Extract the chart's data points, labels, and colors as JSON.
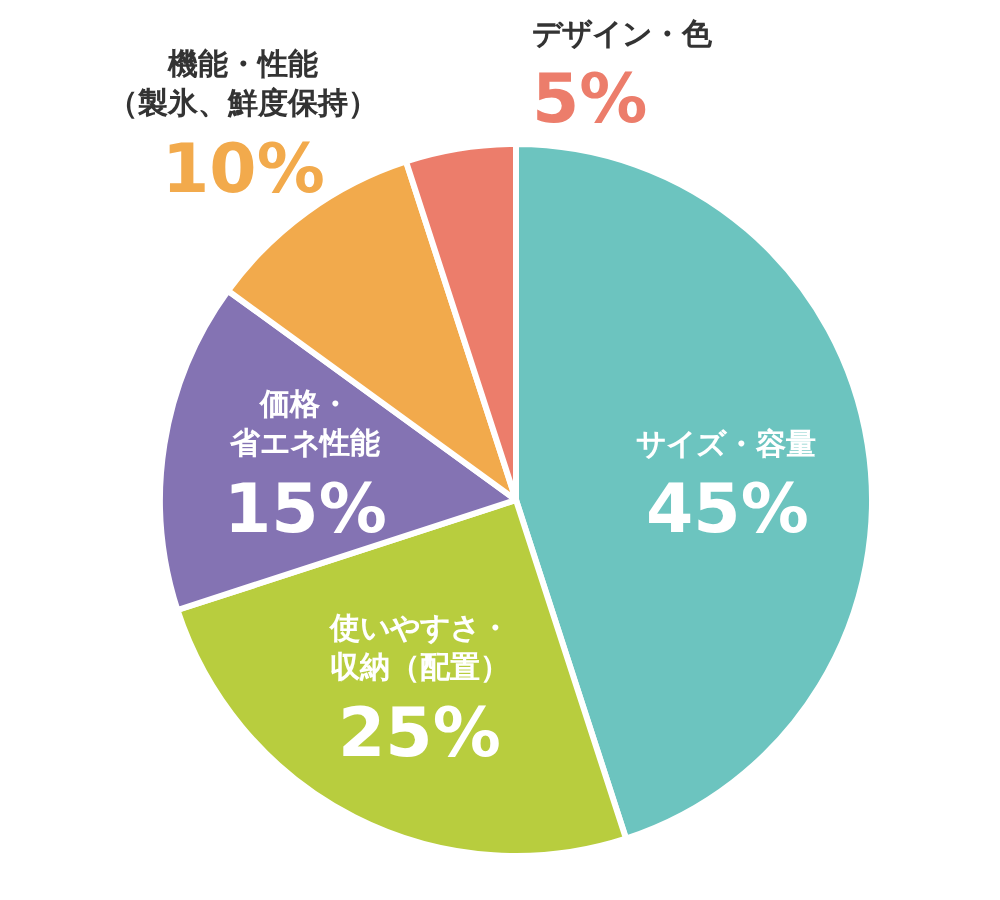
{
  "chart_data": {
    "type": "pie",
    "categories": [
      "サイズ・容量",
      "使いやすさ・収納（配置）",
      "価格・省エネ性能",
      "機能・性能（製氷、鮮度保持）",
      "デザイン・色"
    ],
    "values": [
      45,
      25,
      15,
      10,
      5
    ],
    "value_labels": [
      "45%",
      "25%",
      "15%",
      "10%",
      "5%"
    ],
    "colors": [
      "#6cc4bf",
      "#b8cd3e",
      "#8473b3",
      "#f2aa4c",
      "#ec7d6b"
    ],
    "legend": false
  }
}
